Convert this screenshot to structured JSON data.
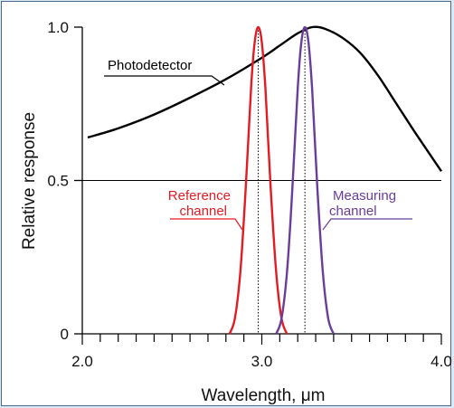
{
  "chart_data": {
    "type": "line",
    "xlabel": "Wavelength, μm",
    "ylabel": "Relative response",
    "xlim": [
      2.0,
      4.0
    ],
    "ylim": [
      0,
      1.0
    ],
    "x_ticks": [
      "2.0",
      "3.0",
      "4.0"
    ],
    "y_ticks": [
      "0",
      "0.5",
      "1.0"
    ],
    "grid": false,
    "reference_line": 0.5,
    "series": [
      {
        "name": "Photodetector",
        "color": "#000000",
        "x": [
          2.03,
          2.2,
          2.4,
          2.6,
          2.8,
          3.0,
          3.1,
          3.2,
          3.28,
          3.35,
          3.45,
          3.55,
          3.65,
          3.75,
          3.85,
          4.0
        ],
        "y": [
          0.64,
          0.67,
          0.715,
          0.77,
          0.83,
          0.9,
          0.94,
          0.98,
          1.0,
          0.995,
          0.965,
          0.915,
          0.84,
          0.75,
          0.66,
          0.53
        ]
      },
      {
        "name": "Reference channel",
        "color": "#e31b23",
        "center": 2.98,
        "peak": 1.0,
        "x": [
          2.82,
          2.85,
          2.88,
          2.91,
          2.94,
          2.96,
          2.98,
          3.0,
          3.02,
          3.05,
          3.08,
          3.11,
          3.14
        ],
        "y": [
          0.0,
          0.05,
          0.2,
          0.47,
          0.8,
          0.95,
          1.0,
          0.95,
          0.8,
          0.47,
          0.2,
          0.05,
          0.0
        ]
      },
      {
        "name": "Measuring channel",
        "color": "#6a3d9a",
        "center": 3.24,
        "peak": 1.0,
        "x": [
          3.08,
          3.11,
          3.14,
          3.17,
          3.2,
          3.22,
          3.24,
          3.26,
          3.28,
          3.31,
          3.34,
          3.37,
          3.4
        ],
        "y": [
          0.0,
          0.05,
          0.2,
          0.47,
          0.8,
          0.95,
          1.0,
          0.95,
          0.8,
          0.47,
          0.2,
          0.05,
          0.0
        ]
      }
    ],
    "annotations": [
      {
        "text": "Photodetector",
        "color": "#000000"
      },
      {
        "text": "Reference",
        "color": "#e31b23"
      },
      {
        "text": "channel",
        "color": "#e31b23"
      },
      {
        "text": "Measuring",
        "color": "#6a3d9a"
      },
      {
        "text": "channel",
        "color": "#6a3d9a"
      }
    ]
  }
}
